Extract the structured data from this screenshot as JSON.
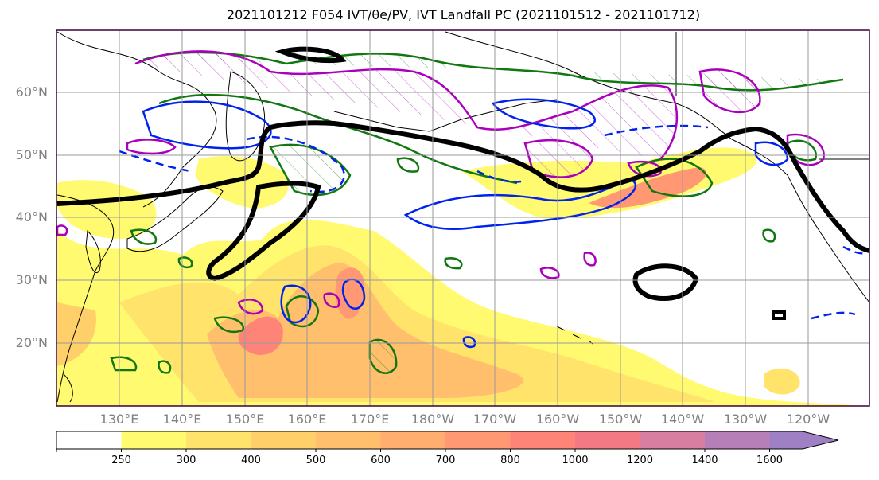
{
  "title": "2021101212 F054 IVT/θe/PV, IVT Landfall PC (2021101512 - 2021101712)",
  "latitude_labels": [
    "60°N",
    "50°N",
    "40°N",
    "30°N",
    "20°N"
  ],
  "longitude_labels": [
    "130°E",
    "140°E",
    "150°E",
    "160°E",
    "170°E",
    "180°W",
    "170°W",
    "160°W",
    "150°W",
    "140°W",
    "130°W",
    "120°W"
  ],
  "colorbar": {
    "levels": [
      "250",
      "300",
      "400",
      "500",
      "600",
      "700",
      "800",
      "1000",
      "1200",
      "1400",
      "1600"
    ],
    "colors": [
      "#ffffff",
      "#fffa70",
      "#ffe36a",
      "#ffd06a",
      "#ffbf6c",
      "#ffae70",
      "#ff9873",
      "#ff8478",
      "#f37a85",
      "#d87ea0",
      "#b77fb8",
      "#a080c4"
    ]
  },
  "overlay_colors": {
    "land_outline": "#000000",
    "pv_contour": "#000000",
    "positive_contour": "#aa00bb",
    "negative_contour": "#0022ee",
    "green_contour": "#117711"
  }
}
